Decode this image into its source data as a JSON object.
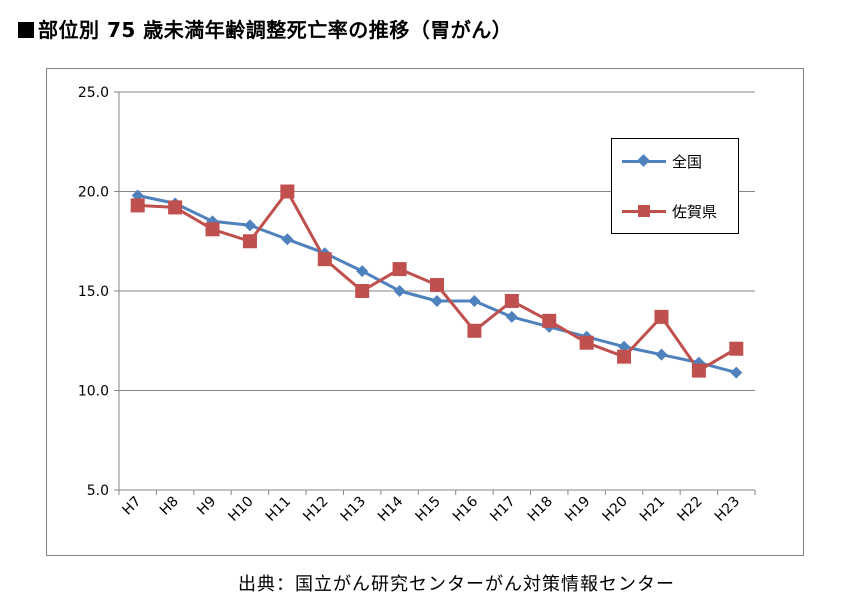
{
  "page": {
    "title": "部位別 75 歳未満年齢調整死亡率の推移（胃がん）",
    "source": "出典：国立がん研究センターがん対策情報センター"
  },
  "legend": {
    "national_label": "全国",
    "saga_label": "佐賀県"
  },
  "colors": {
    "national": "#4f81bd",
    "saga": "#c0504d",
    "gridline": "#868686",
    "axis": "#868686"
  },
  "chart_data": {
    "type": "line",
    "title": "",
    "xlabel": "",
    "ylabel": "",
    "ylim": [
      5.0,
      25.0
    ],
    "yticks": [
      "5.0",
      "10.0",
      "15.0",
      "20.0",
      "25.0"
    ],
    "grid": true,
    "legend_position": "top-right",
    "categories": [
      "H7",
      "H8",
      "H9",
      "H10",
      "H11",
      "H12",
      "H13",
      "H14",
      "H15",
      "H16",
      "H17",
      "H18",
      "H19",
      "H20",
      "H21",
      "H22",
      "H23"
    ],
    "series": [
      {
        "name": "全国",
        "marker": "diamond",
        "values": [
          19.8,
          19.4,
          18.5,
          18.3,
          17.6,
          16.9,
          16.0,
          15.0,
          14.5,
          14.5,
          13.7,
          13.2,
          12.7,
          12.2,
          11.8,
          11.4,
          10.9
        ]
      },
      {
        "name": "佐賀県",
        "marker": "square",
        "values": [
          19.3,
          19.2,
          18.1,
          17.5,
          20.0,
          16.6,
          15.0,
          16.1,
          15.3,
          13.0,
          14.5,
          13.5,
          12.4,
          11.7,
          13.7,
          11.0,
          12.1
        ]
      }
    ]
  }
}
